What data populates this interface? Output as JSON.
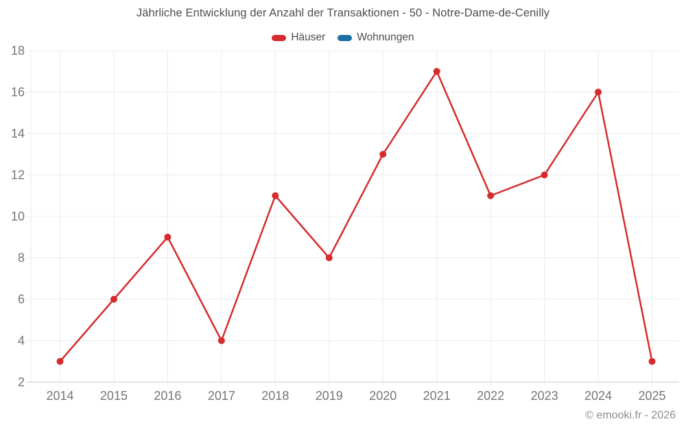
{
  "page": {
    "title": "Jährliche Entwicklung der Anzahl der Transaktionen - 50 - Notre-Dame-de-Cenilly",
    "footer_credit": "© emooki.fr - 2026"
  },
  "legend": {
    "items": [
      {
        "label": "Häuser",
        "color": "#d62b2d"
      },
      {
        "label": "Wohnungen",
        "color": "#1c6ea4"
      }
    ]
  },
  "chart_data": {
    "type": "line",
    "title": "Jährliche Entwicklung der Anzahl der Transaktionen - 50 - Notre-Dame-de-Cenilly",
    "categories": [
      "2014",
      "2015",
      "2016",
      "2017",
      "2018",
      "2019",
      "2020",
      "2021",
      "2022",
      "2023",
      "2024",
      "2025"
    ],
    "series": [
      {
        "name": "Häuser",
        "color": "#d62b2d",
        "values": [
          3,
          6,
          9,
          4,
          11,
          8,
          13,
          17,
          11,
          12,
          16,
          3
        ]
      },
      {
        "name": "Wohnungen",
        "color": "#1c6ea4",
        "values": []
      }
    ],
    "xlabel": "",
    "ylabel": "",
    "ylim": [
      2,
      18
    ],
    "ytick_step": 2,
    "grid": true,
    "legend_position": "top",
    "marker": "circle",
    "grid_color": "#ebebeb",
    "axis_line_color": "#dcdcdc",
    "axis_text_color": "#757575",
    "title_color": "#4d4d4d",
    "footer_color": "#8c8c8c"
  }
}
